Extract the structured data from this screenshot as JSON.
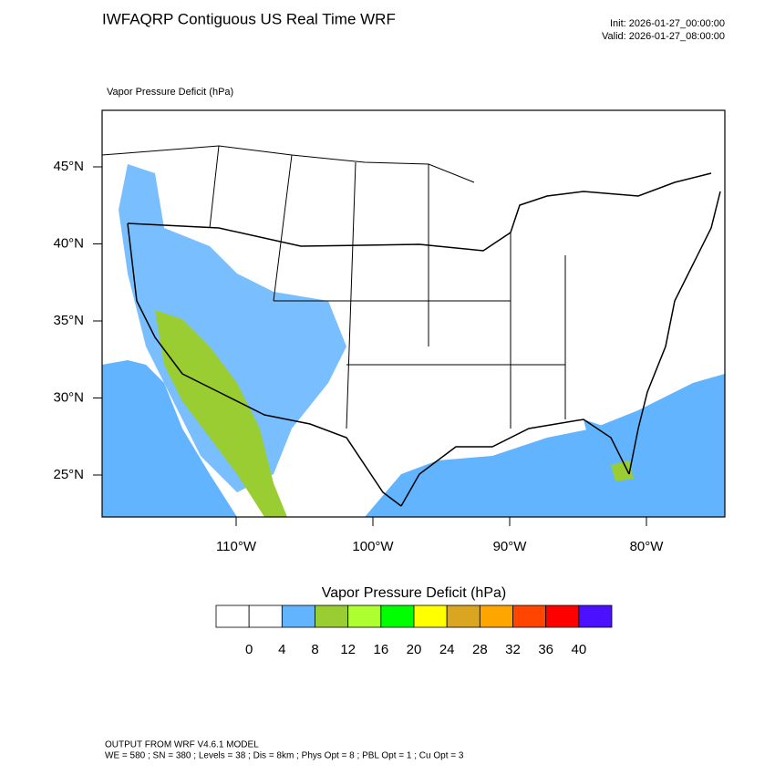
{
  "header": {
    "title": "IWFAQRP Contiguous US Real Time WRF",
    "init": "Init: 2026-01-27_00:00:00",
    "valid": "Valid: 2026-01-27_08:00:00"
  },
  "map": {
    "field_label": "Vapor Pressure Deficit   (hPa)",
    "lat_ticks": [
      {
        "value": 45,
        "label": "45°N"
      },
      {
        "value": 40,
        "label": "40°N"
      },
      {
        "value": 35,
        "label": "35°N"
      },
      {
        "value": 30,
        "label": "30°N"
      },
      {
        "value": 25,
        "label": "25°N"
      }
    ],
    "lon_ticks": [
      {
        "value": -110,
        "label": "110°W"
      },
      {
        "value": -100,
        "label": "100°W"
      },
      {
        "value": -90,
        "label": "90°W"
      },
      {
        "value": -80,
        "label": "80°W"
      }
    ]
  },
  "colorbar": {
    "title": "Vapor Pressure Deficit  (hPa)",
    "levels": [
      0,
      4,
      8,
      12,
      16,
      20,
      24,
      28,
      32,
      36,
      40
    ],
    "colors": [
      "#ffffff",
      "#ffffff",
      "#62b4ff",
      "#9acd32",
      "#adff2f",
      "#00ff00",
      "#ffff00",
      "#daa520",
      "#ffa500",
      "#ff4500",
      "#ff0000",
      "#4b10ff"
    ]
  },
  "footer": {
    "line1": "OUTPUT FROM WRF V4.6.1 MODEL",
    "line2": "WE = 580 ; SN = 380 ; Levels = 38 ; Dis = 8km ; Phys Opt = 8 ; PBL Opt = 1 ; Cu Opt = 3"
  }
}
